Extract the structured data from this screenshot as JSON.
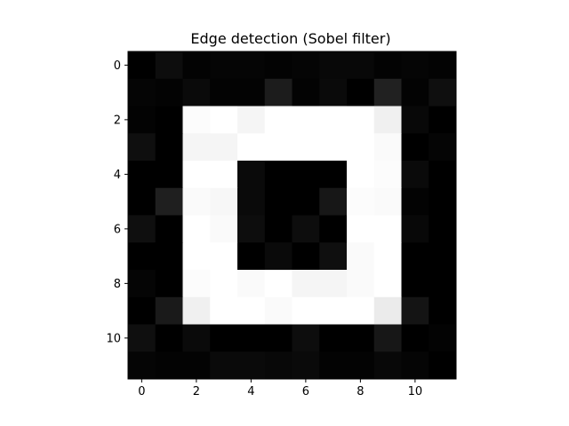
{
  "chart_data": {
    "type": "heatmap",
    "title": "Edge detection (Sobel filter)",
    "xlabel": "",
    "ylabel": "",
    "colormap": "gray",
    "vmin": 0,
    "vmax": 1,
    "x_ticks": [
      0,
      2,
      4,
      6,
      8,
      10
    ],
    "y_ticks": [
      0,
      2,
      4,
      6,
      8,
      10
    ],
    "x_tick_labels": [
      "0",
      "2",
      "4",
      "6",
      "8",
      "10"
    ],
    "y_tick_labels": [
      "0",
      "2",
      "4",
      "6",
      "8",
      "10"
    ],
    "xlim": [
      -0.5,
      11.5
    ],
    "ylim": [
      11.5,
      -0.5
    ],
    "grid": false,
    "rows": 12,
    "cols": 12,
    "values": [
      [
        0.0,
        0.05,
        0.01,
        0.02,
        0.02,
        0.01,
        0.02,
        0.03,
        0.03,
        0.01,
        0.02,
        0.01
      ],
      [
        0.02,
        0.01,
        0.04,
        0.01,
        0.01,
        0.11,
        0.01,
        0.04,
        0.0,
        0.13,
        0.01,
        0.06
      ],
      [
        0.01,
        0.0,
        0.99,
        1.0,
        0.96,
        1.0,
        1.0,
        1.0,
        1.0,
        0.94,
        0.03,
        0.0
      ],
      [
        0.06,
        0.0,
        0.96,
        0.96,
        1.0,
        1.0,
        1.0,
        1.0,
        1.0,
        0.98,
        0.0,
        0.02
      ],
      [
        0.0,
        0.0,
        1.0,
        1.0,
        0.04,
        0.0,
        0.0,
        0.0,
        1.0,
        0.99,
        0.04,
        0.0
      ],
      [
        0.0,
        0.12,
        0.98,
        0.97,
        0.04,
        0.0,
        0.0,
        0.09,
        0.99,
        0.98,
        0.01,
        0.0
      ],
      [
        0.06,
        0.0,
        1.0,
        0.98,
        0.05,
        0.0,
        0.05,
        0.0,
        1.0,
        1.0,
        0.03,
        0.0
      ],
      [
        0.0,
        0.0,
        1.0,
        1.0,
        0.0,
        0.04,
        0.0,
        0.06,
        0.98,
        1.0,
        0.0,
        0.0
      ],
      [
        0.02,
        0.0,
        0.99,
        1.0,
        0.98,
        1.0,
        0.96,
        0.96,
        0.98,
        1.0,
        0.0,
        0.0
      ],
      [
        0.0,
        0.1,
        0.94,
        1.0,
        1.0,
        0.98,
        1.0,
        1.0,
        1.0,
        0.92,
        0.08,
        0.0
      ],
      [
        0.06,
        0.0,
        0.04,
        0.0,
        0.0,
        0.0,
        0.05,
        0.0,
        0.0,
        0.09,
        0.0,
        0.01
      ],
      [
        0.02,
        0.01,
        0.01,
        0.04,
        0.04,
        0.03,
        0.04,
        0.01,
        0.01,
        0.03,
        0.02,
        0.0
      ]
    ]
  }
}
